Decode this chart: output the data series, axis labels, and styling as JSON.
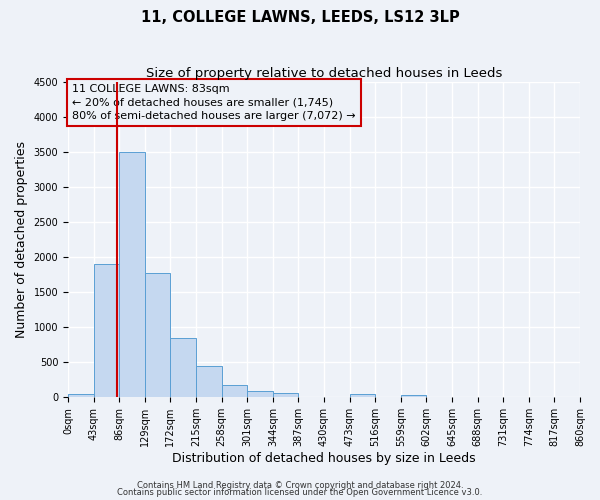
{
  "title": "11, COLLEGE LAWNS, LEEDS, LS12 3LP",
  "subtitle": "Size of property relative to detached houses in Leeds",
  "xlabel": "Distribution of detached houses by size in Leeds",
  "ylabel": "Number of detached properties",
  "footnote1": "Contains HM Land Registry data © Crown copyright and database right 2024.",
  "footnote2": "Contains public sector information licensed under the Open Government Licence v3.0.",
  "bin_edges": [
    0,
    43,
    86,
    129,
    172,
    215,
    258,
    301,
    344,
    387,
    430,
    473,
    516,
    559,
    602,
    645,
    688,
    731,
    774,
    817,
    860
  ],
  "bin_counts": [
    50,
    1900,
    3500,
    1775,
    850,
    450,
    175,
    95,
    55,
    0,
    0,
    50,
    0,
    30,
    0,
    0,
    0,
    0,
    0,
    0
  ],
  "bar_color": "#c5d8f0",
  "bar_edge_color": "#5a9fd4",
  "property_size": 83,
  "red_line_color": "#cc0000",
  "annotation_line1": "11 COLLEGE LAWNS: 83sqm",
  "annotation_line2": "← 20% of detached houses are smaller (1,745)",
  "annotation_line3": "80% of semi-detached houses are larger (7,072) →",
  "annotation_box_color": "#cc0000",
  "ylim_max": 4500,
  "yticks": [
    0,
    500,
    1000,
    1500,
    2000,
    2500,
    3000,
    3500,
    4000,
    4500
  ],
  "tick_labels": [
    "0sqm",
    "43sqm",
    "86sqm",
    "129sqm",
    "172sqm",
    "215sqm",
    "258sqm",
    "301sqm",
    "344sqm",
    "387sqm",
    "430sqm",
    "473sqm",
    "516sqm",
    "559sqm",
    "602sqm",
    "645sqm",
    "688sqm",
    "731sqm",
    "774sqm",
    "817sqm",
    "860sqm"
  ],
  "bg_color": "#eef2f8",
  "grid_color": "#ffffff",
  "title_fontsize": 10.5,
  "subtitle_fontsize": 9.5,
  "axis_label_fontsize": 9,
  "tick_fontsize": 7,
  "annotation_fontsize": 8,
  "footnote_fontsize": 6
}
